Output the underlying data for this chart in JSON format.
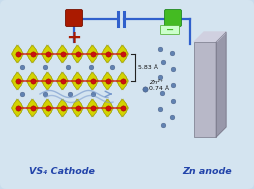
{
  "bg_color": "#c8dced",
  "bg_outer": "#dce8f2",
  "circuit_color": "#3060cc",
  "plus_color": "#aa1a00",
  "minus_color": "#44bb22",
  "s_color": "#d4d400",
  "s_dark": "#888800",
  "v_color": "#cc1111",
  "v_dark": "#990000",
  "zn_color": "#5577aa",
  "anode_front": "#b8b8c8",
  "anode_side": "#9898aa",
  "anode_top": "#d0d0e0",
  "label_color": "#2244aa",
  "annot_color": "#111111",
  "cathode_label": "VS₄ Cathode",
  "anode_label": "Zn anode",
  "dim_label": "5.83 Å",
  "ion_label": "Zn²⁺",
  "ion_size_label": "0.74 Å",
  "figsize": [
    2.54,
    1.89
  ],
  "dpi": 100
}
